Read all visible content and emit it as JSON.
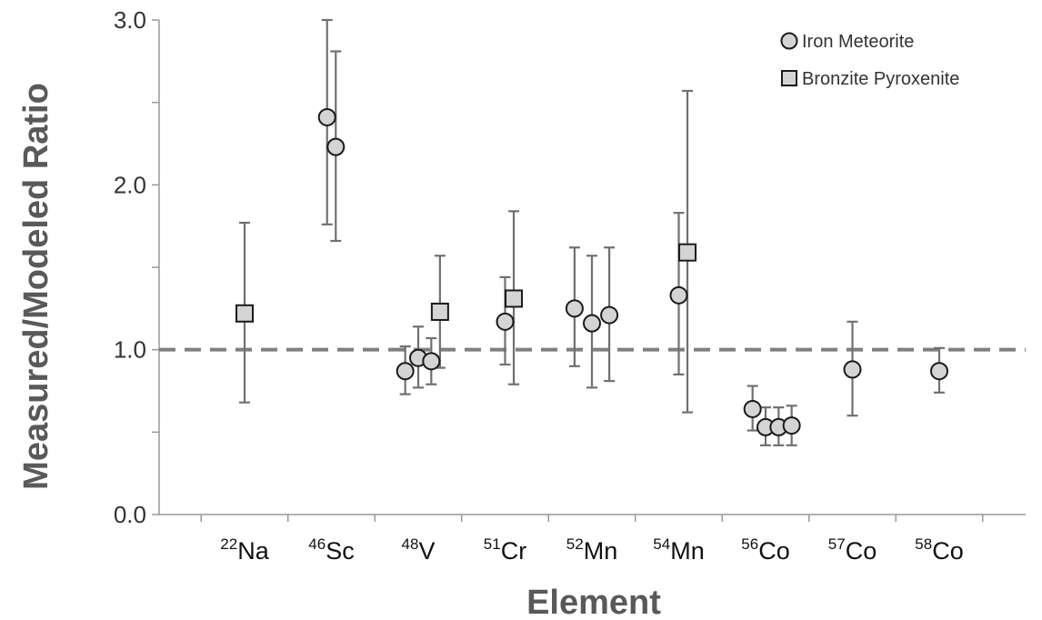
{
  "chart_data": {
    "type": "scatter",
    "xlabel": "Element",
    "ylabel": "Measured/Modeled Ratio",
    "ylim": [
      0,
      3
    ],
    "yticks": [
      {
        "value": 0,
        "label": "0.0"
      },
      {
        "value": 0.5,
        "label": ""
      },
      {
        "value": 1,
        "label": "1.0"
      },
      {
        "value": 1.5,
        "label": ""
      },
      {
        "value": 2,
        "label": "2.0"
      },
      {
        "value": 2.5,
        "label": ""
      },
      {
        "value": 3,
        "label": "3.0"
      }
    ],
    "reference_line": {
      "value": 1.0,
      "style": "dashed"
    },
    "grid": false,
    "legend_position": "top-right",
    "categories": [
      {
        "mass": "22",
        "symbol": "Na"
      },
      {
        "mass": "46",
        "symbol": "Sc"
      },
      {
        "mass": "48",
        "symbol": "V"
      },
      {
        "mass": "51",
        "symbol": "Cr"
      },
      {
        "mass": "52",
        "symbol": "Mn"
      },
      {
        "mass": "54",
        "symbol": "Mn"
      },
      {
        "mass": "56",
        "symbol": "Co"
      },
      {
        "mass": "57",
        "symbol": "Co"
      },
      {
        "mass": "58",
        "symbol": "Co"
      }
    ],
    "series": [
      {
        "name": "Iron Meteorite",
        "marker": "circle",
        "color": "#d4d4d4",
        "points": [
          {
            "category": 1,
            "offset": -0.05,
            "y": 2.41,
            "err_low": 1.76,
            "err_high": 3.0
          },
          {
            "category": 1,
            "offset": 0.05,
            "y": 2.23,
            "err_low": 1.66,
            "err_high": 2.81
          },
          {
            "category": 2,
            "offset": -0.15,
            "y": 0.87,
            "err_low": 0.73,
            "err_high": 1.02
          },
          {
            "category": 2,
            "offset": 0.0,
            "y": 0.95,
            "err_low": 0.77,
            "err_high": 1.14
          },
          {
            "category": 2,
            "offset": 0.15,
            "y": 0.93,
            "err_low": 0.79,
            "err_high": 1.07
          },
          {
            "category": 3,
            "offset": 0.0,
            "y": 1.17,
            "err_low": 0.91,
            "err_high": 1.44
          },
          {
            "category": 4,
            "offset": -0.2,
            "y": 1.25,
            "err_low": 0.9,
            "err_high": 1.62
          },
          {
            "category": 4,
            "offset": 0.0,
            "y": 1.16,
            "err_low": 0.77,
            "err_high": 1.57
          },
          {
            "category": 4,
            "offset": 0.2,
            "y": 1.21,
            "err_low": 0.81,
            "err_high": 1.62
          },
          {
            "category": 5,
            "offset": 0.0,
            "y": 1.33,
            "err_low": 0.85,
            "err_high": 1.83
          },
          {
            "category": 6,
            "offset": -0.15,
            "y": 0.64,
            "err_low": 0.51,
            "err_high": 0.78
          },
          {
            "category": 6,
            "offset": 0.0,
            "y": 0.53,
            "err_low": 0.42,
            "err_high": 0.65
          },
          {
            "category": 6,
            "offset": 0.15,
            "y": 0.53,
            "err_low": 0.42,
            "err_high": 0.65
          },
          {
            "category": 6,
            "offset": 0.3,
            "y": 0.54,
            "err_low": 0.42,
            "err_high": 0.66
          },
          {
            "category": 7,
            "offset": 0.0,
            "y": 0.88,
            "err_low": 0.6,
            "err_high": 1.17
          },
          {
            "category": 8,
            "offset": 0.0,
            "y": 0.87,
            "err_low": 0.74,
            "err_high": 1.01
          }
        ]
      },
      {
        "name": "Bronzite Pyroxenite",
        "marker": "square",
        "color": "#d4d4d4",
        "points": [
          {
            "category": 0,
            "offset": 0.0,
            "y": 1.22,
            "err_low": 0.68,
            "err_high": 1.77
          },
          {
            "category": 2,
            "offset": 0.25,
            "y": 1.23,
            "err_low": 0.89,
            "err_high": 1.57
          },
          {
            "category": 3,
            "offset": 0.1,
            "y": 1.31,
            "err_low": 0.79,
            "err_high": 1.84
          },
          {
            "category": 5,
            "offset": 0.1,
            "y": 1.59,
            "err_low": 0.62,
            "err_high": 2.57
          }
        ]
      }
    ]
  },
  "colors": {
    "axis": "#999999",
    "error_bar": "#707070",
    "reference_line": "#7f7f7f",
    "marker_fill": "#d4d4d4",
    "marker_stroke": "#1a1a1a"
  }
}
